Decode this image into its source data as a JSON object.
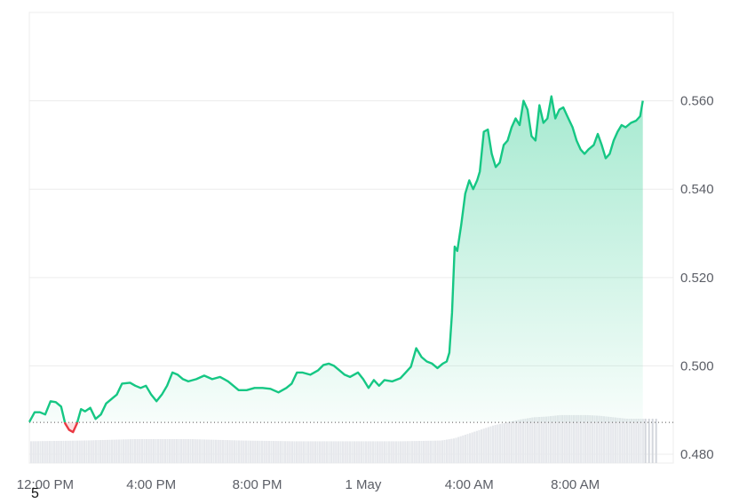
{
  "page": {
    "footer_number": "5"
  },
  "chart_data": {
    "type": "area",
    "title": "",
    "xlabel": "",
    "ylabel": "",
    "grid": true,
    "baseline": 0.4872,
    "x_ticks": [
      "12:00 PM",
      "4:00 PM",
      "8:00 PM",
      "1 May",
      "4:00 AM",
      "8:00 AM"
    ],
    "y_ticks": [
      "0.480",
      "0.500",
      "0.520",
      "0.540",
      "0.560"
    ],
    "y_tick_values": [
      0.48,
      0.5,
      0.52,
      0.54,
      0.56
    ],
    "ylim": [
      0.478,
      0.58
    ],
    "xlim": [
      0,
      24.3
    ],
    "colors": {
      "up": "#16c784",
      "down": "#ea3943",
      "grid": "#ececec",
      "volume": "#e6e8ec"
    },
    "series": [
      {
        "values": [
          [
            0.0,
            0.4873
          ],
          [
            0.2,
            0.4895
          ],
          [
            0.4,
            0.4895
          ],
          [
            0.6,
            0.489
          ],
          [
            0.8,
            0.492
          ],
          [
            1.0,
            0.4918
          ],
          [
            1.2,
            0.4908
          ],
          [
            1.35,
            0.487
          ],
          [
            1.5,
            0.4855
          ],
          [
            1.65,
            0.485
          ],
          [
            1.8,
            0.487
          ],
          [
            1.95,
            0.4902
          ],
          [
            2.1,
            0.4897
          ],
          [
            2.3,
            0.4905
          ],
          [
            2.5,
            0.488
          ],
          [
            2.7,
            0.489
          ],
          [
            2.9,
            0.4915
          ],
          [
            3.1,
            0.4925
          ],
          [
            3.3,
            0.4935
          ],
          [
            3.5,
            0.496
          ],
          [
            3.8,
            0.4962
          ],
          [
            4.0,
            0.4955
          ],
          [
            4.2,
            0.495
          ],
          [
            4.4,
            0.4955
          ],
          [
            4.6,
            0.4935
          ],
          [
            4.8,
            0.492
          ],
          [
            5.0,
            0.4935
          ],
          [
            5.2,
            0.4955
          ],
          [
            5.4,
            0.4985
          ],
          [
            5.6,
            0.498
          ],
          [
            5.8,
            0.497
          ],
          [
            6.0,
            0.4965
          ],
          [
            6.3,
            0.497
          ],
          [
            6.6,
            0.4978
          ],
          [
            6.9,
            0.497
          ],
          [
            7.2,
            0.4975
          ],
          [
            7.5,
            0.4965
          ],
          [
            7.7,
            0.4955
          ],
          [
            7.9,
            0.4945
          ],
          [
            8.2,
            0.4945
          ],
          [
            8.5,
            0.495
          ],
          [
            8.8,
            0.495
          ],
          [
            9.1,
            0.4948
          ],
          [
            9.4,
            0.494
          ],
          [
            9.7,
            0.495
          ],
          [
            9.9,
            0.496
          ],
          [
            10.1,
            0.4985
          ],
          [
            10.3,
            0.4985
          ],
          [
            10.6,
            0.498
          ],
          [
            10.9,
            0.499
          ],
          [
            11.1,
            0.5002
          ],
          [
            11.3,
            0.5005
          ],
          [
            11.5,
            0.5
          ],
          [
            11.7,
            0.499
          ],
          [
            11.9,
            0.498
          ],
          [
            12.1,
            0.4975
          ],
          [
            12.4,
            0.4985
          ],
          [
            12.6,
            0.497
          ],
          [
            12.8,
            0.495
          ],
          [
            13.0,
            0.4968
          ],
          [
            13.2,
            0.4955
          ],
          [
            13.4,
            0.4968
          ],
          [
            13.7,
            0.4965
          ],
          [
            14.0,
            0.4972
          ],
          [
            14.2,
            0.4985
          ],
          [
            14.4,
            0.4998
          ],
          [
            14.6,
            0.504
          ],
          [
            14.8,
            0.502
          ],
          [
            15.0,
            0.501
          ],
          [
            15.2,
            0.5005
          ],
          [
            15.4,
            0.4995
          ],
          [
            15.6,
            0.5005
          ],
          [
            15.75,
            0.501
          ],
          [
            15.85,
            0.503
          ],
          [
            15.95,
            0.512
          ],
          [
            16.05,
            0.527
          ],
          [
            16.15,
            0.526
          ],
          [
            16.3,
            0.532
          ],
          [
            16.45,
            0.539
          ],
          [
            16.6,
            0.542
          ],
          [
            16.75,
            0.54
          ],
          [
            16.9,
            0.542
          ],
          [
            17.0,
            0.544
          ],
          [
            17.15,
            0.553
          ],
          [
            17.3,
            0.5535
          ],
          [
            17.45,
            0.548
          ],
          [
            17.6,
            0.545
          ],
          [
            17.75,
            0.546
          ],
          [
            17.9,
            0.55
          ],
          [
            18.05,
            0.551
          ],
          [
            18.2,
            0.554
          ],
          [
            18.35,
            0.556
          ],
          [
            18.5,
            0.5545
          ],
          [
            18.65,
            0.56
          ],
          [
            18.8,
            0.558
          ],
          [
            18.95,
            0.552
          ],
          [
            19.1,
            0.551
          ],
          [
            19.25,
            0.559
          ],
          [
            19.4,
            0.555
          ],
          [
            19.55,
            0.556
          ],
          [
            19.7,
            0.561
          ],
          [
            19.85,
            0.556
          ],
          [
            20.0,
            0.558
          ],
          [
            20.15,
            0.5585
          ],
          [
            20.3,
            0.5565
          ],
          [
            20.5,
            0.554
          ],
          [
            20.65,
            0.551
          ],
          [
            20.8,
            0.549
          ],
          [
            20.95,
            0.548
          ],
          [
            21.1,
            0.549
          ],
          [
            21.3,
            0.55
          ],
          [
            21.45,
            0.5525
          ],
          [
            21.6,
            0.55
          ],
          [
            21.75,
            0.547
          ],
          [
            21.9,
            0.548
          ],
          [
            22.05,
            0.551
          ],
          [
            22.2,
            0.553
          ],
          [
            22.35,
            0.5545
          ],
          [
            22.5,
            0.554
          ],
          [
            22.7,
            0.555
          ],
          [
            22.9,
            0.5555
          ],
          [
            23.05,
            0.5565
          ],
          [
            23.15,
            0.56
          ]
        ]
      }
    ],
    "volume": [
      [
        0.0,
        0.3
      ],
      [
        2.0,
        0.31
      ],
      [
        4.0,
        0.33
      ],
      [
        6.0,
        0.33
      ],
      [
        8.0,
        0.31
      ],
      [
        10.0,
        0.3
      ],
      [
        12.0,
        0.3
      ],
      [
        14.0,
        0.3
      ],
      [
        15.5,
        0.31
      ],
      [
        16.0,
        0.34
      ],
      [
        16.5,
        0.4
      ],
      [
        17.0,
        0.46
      ],
      [
        17.5,
        0.52
      ],
      [
        18.0,
        0.56
      ],
      [
        18.5,
        0.6
      ],
      [
        19.0,
        0.63
      ],
      [
        19.5,
        0.64
      ],
      [
        20.0,
        0.66
      ],
      [
        20.5,
        0.66
      ],
      [
        21.0,
        0.66
      ],
      [
        21.5,
        0.65
      ],
      [
        22.0,
        0.63
      ],
      [
        22.5,
        0.61
      ],
      [
        23.15,
        0.61
      ]
    ]
  }
}
